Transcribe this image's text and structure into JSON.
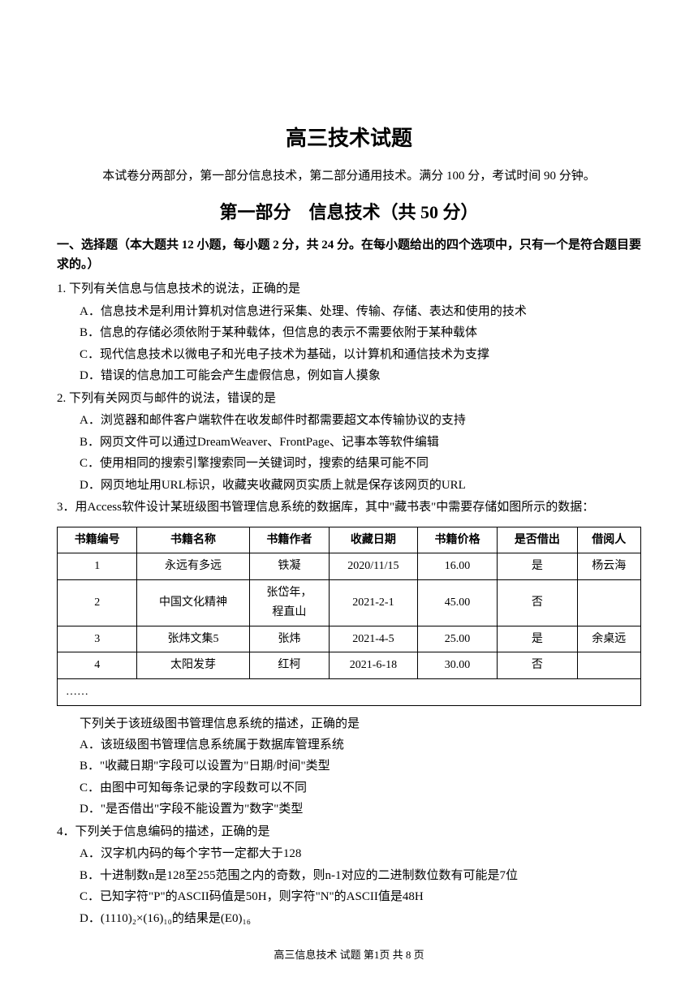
{
  "title": "高三技术试题",
  "subtitle": "本试卷分两部分，第一部分信息技术，第二部分通用技术。满分 100 分，考试时间 90 分钟。",
  "section_title": "第一部分　信息技术（共 50 分）",
  "instruction": "一、选择题（本大题共 12 小题，每小题 2 分，共 24 分。在每小题给出的四个选项中，只有一个是符合题目要求的。）",
  "q1": {
    "text": "1. 下列有关信息与信息技术的说法，正确的是",
    "a": "A．信息技术是利用计算机对信息进行采集、处理、传输、存储、表达和使用的技术",
    "b": "B．信息的存储必须依附于某种载体，但信息的表示不需要依附于某种载体",
    "c": "C．现代信息技术以微电子和光电子技术为基础，以计算机和通信技术为支撑",
    "d": "D．错误的信息加工可能会产生虚假信息，例如盲人摸象"
  },
  "q2": {
    "text": "2. 下列有关网页与邮件的说法，错误的是",
    "a": "A．浏览器和邮件客户端软件在收发邮件时都需要超文本传输协议的支持",
    "b": "B．网页文件可以通过DreamWeaver、FrontPage、记事本等软件编辑",
    "c": "C．使用相同的搜索引擎搜索同一关键词时，搜索的结果可能不同",
    "d": "D．网页地址用URL标识，收藏夹收藏网页实质上就是保存该网页的URL"
  },
  "q3": {
    "text": "3．用Access软件设计某班级图书管理信息系统的数据库，其中\"藏书表\"中需要存储如图所示的数据：",
    "tail": "",
    "table": {
      "headers": [
        "书籍编号",
        "书籍名称",
        "书籍作者",
        "收藏日期",
        "书籍价格",
        "是否借出",
        "借阅人"
      ],
      "rows": [
        [
          "1",
          "永远有多远",
          "铁凝",
          "2020/11/15",
          "16.00",
          "是",
          "杨云海"
        ],
        [
          "2",
          "中国文化精神",
          "张岱年，\n程直山",
          "2021-2-1",
          "45.00",
          "否",
          ""
        ],
        [
          "3",
          "张炜文集5",
          "张炜",
          "2021-4-5",
          "25.00",
          "是",
          "余桌远"
        ],
        [
          "4",
          "太阳发芽",
          "红柯",
          "2021-6-18",
          "30.00",
          "否",
          ""
        ]
      ],
      "ellipsis": "……"
    },
    "post": "下列关于该班级图书管理信息系统的描述，正确的是",
    "a": "A．该班级图书管理信息系统属于数据库管理系统",
    "b": "B．\"收藏日期\"字段可以设置为\"日期/时间\"类型",
    "c": "C．由图中可知每条记录的字段数可以不同",
    "d": "D．\"是否借出\"字段不能设置为\"数字\"类型"
  },
  "q4": {
    "text": "4．下列关于信息编码的描述，正确的是",
    "a": "A．汉字机内码的每个字节一定都大于128",
    "b": "B．十进制数n是128至255范围之内的奇数，则n-1对应的二进制数位数有可能是7位",
    "c": "C．已知字符\"P\"的ASCII码值是50H，则字符\"N\"的ASCII值是48H",
    "d": "D．(1110)₂×(16)₁₀的结果是(E0)₁₆"
  },
  "footer": "高三信息技术 试题 第1页 共 8 页"
}
